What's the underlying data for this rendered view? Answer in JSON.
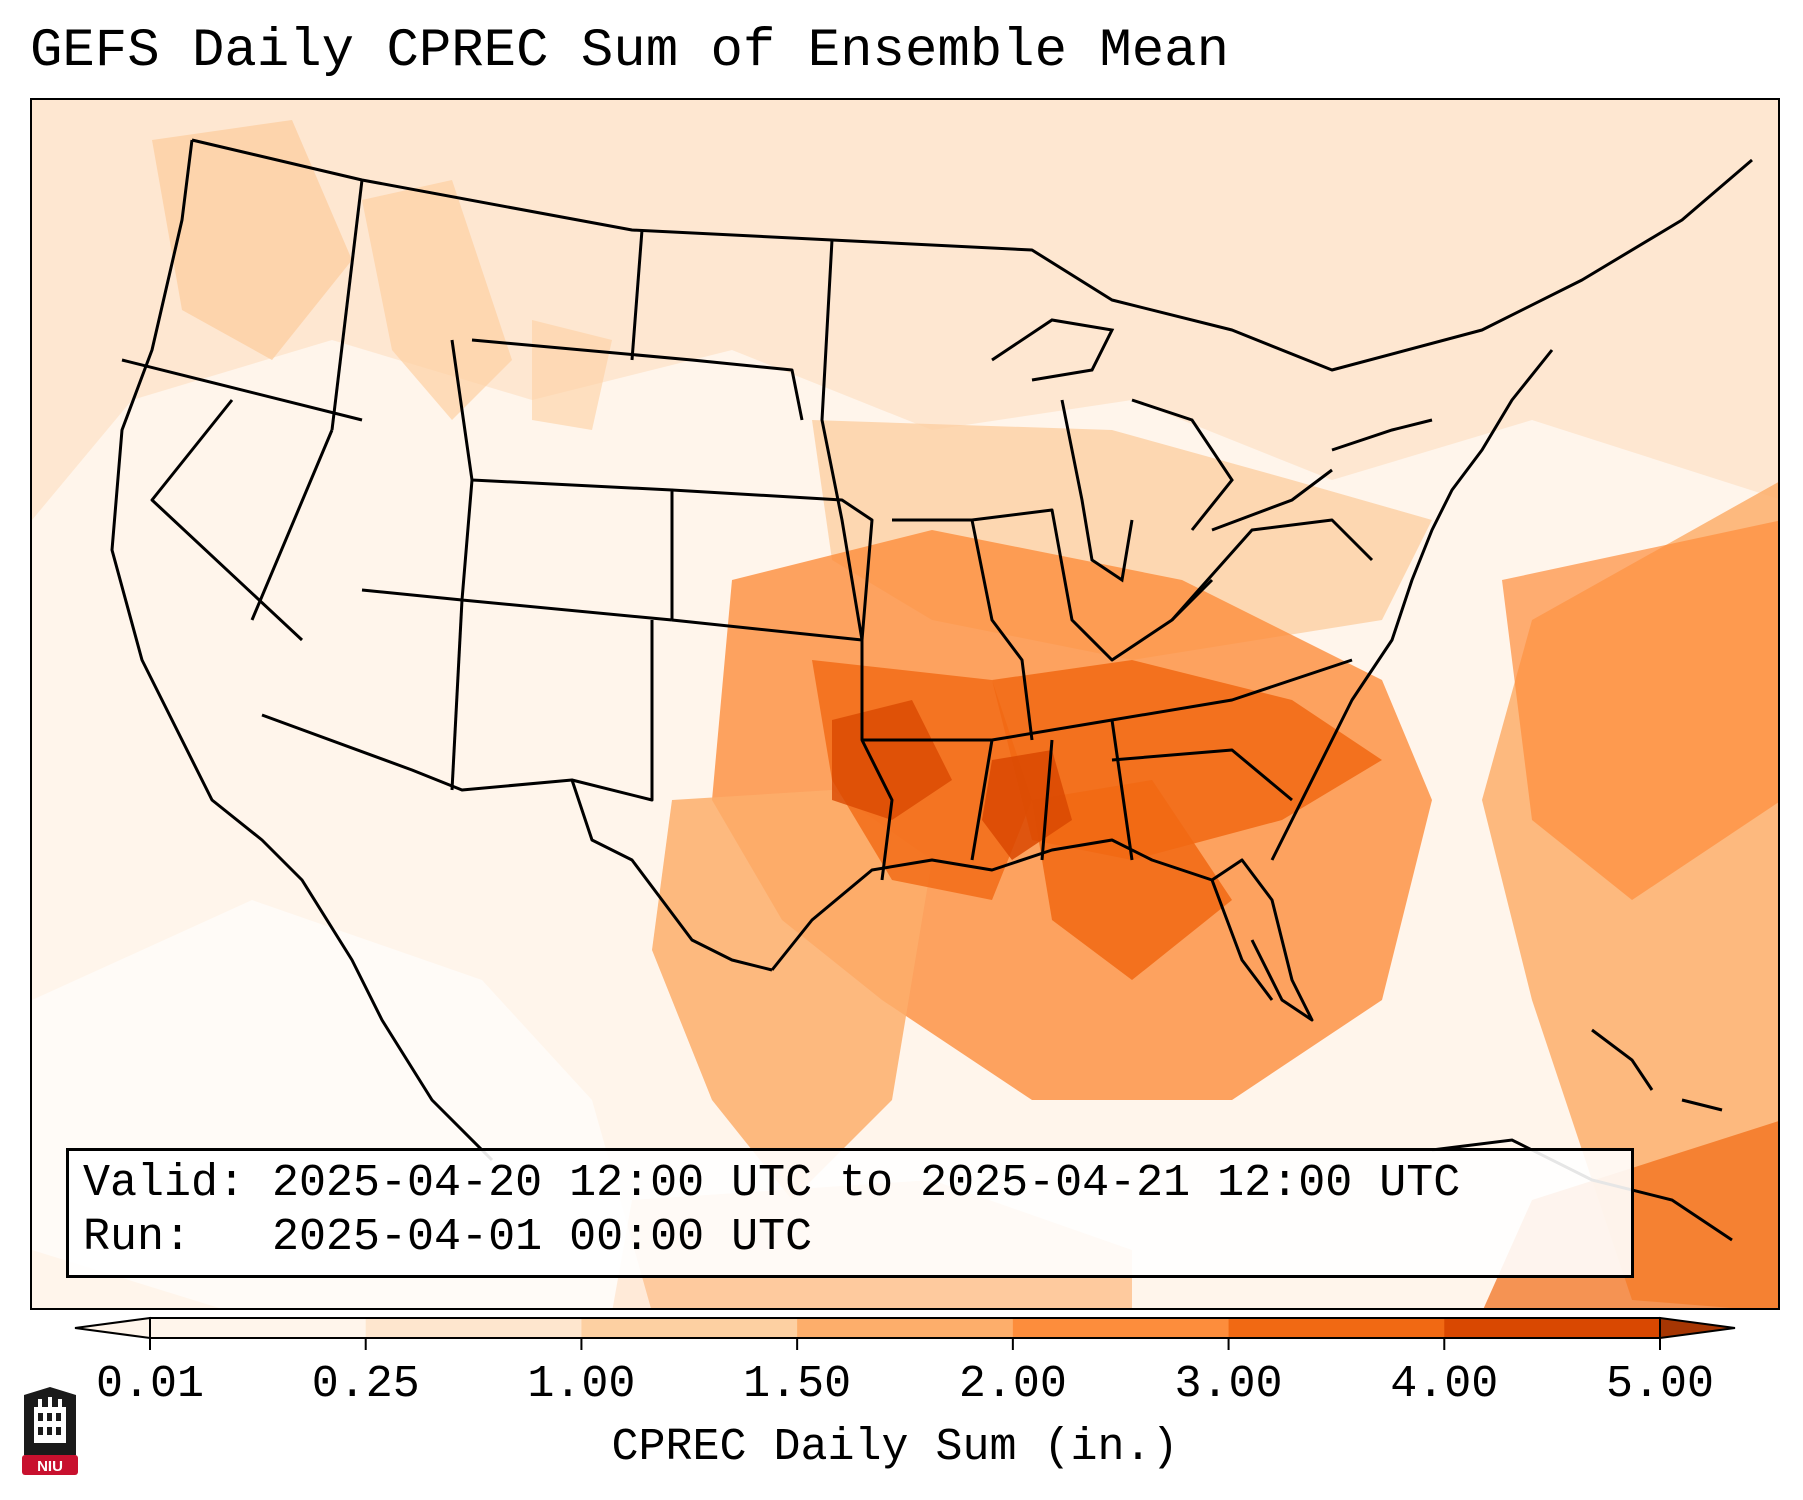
{
  "title": "GEFS Daily CPREC Sum of Ensemble Mean",
  "info": {
    "valid_text": "Valid: 2025-04-20 12:00 UTC to 2025-04-21 12:00 UTC",
    "run_text": "Run:   2025-04-01 00:00 UTC"
  },
  "colorbar": {
    "label": "CPREC Daily Sum (in.)",
    "ticks": [
      "0.01",
      "0.25",
      "1.00",
      "1.50",
      "2.00",
      "3.00",
      "4.00",
      "5.00"
    ],
    "colors": [
      "#fff5eb",
      "#fee6ce",
      "#fdd0a2",
      "#fdae6b",
      "#fd8d3c",
      "#f16913",
      "#d94801",
      "#a63603"
    ],
    "extend": "both"
  },
  "logo": {
    "text": "NIU",
    "colors": {
      "shield": "#1a1a1a",
      "banner": "#c8102e"
    }
  }
}
